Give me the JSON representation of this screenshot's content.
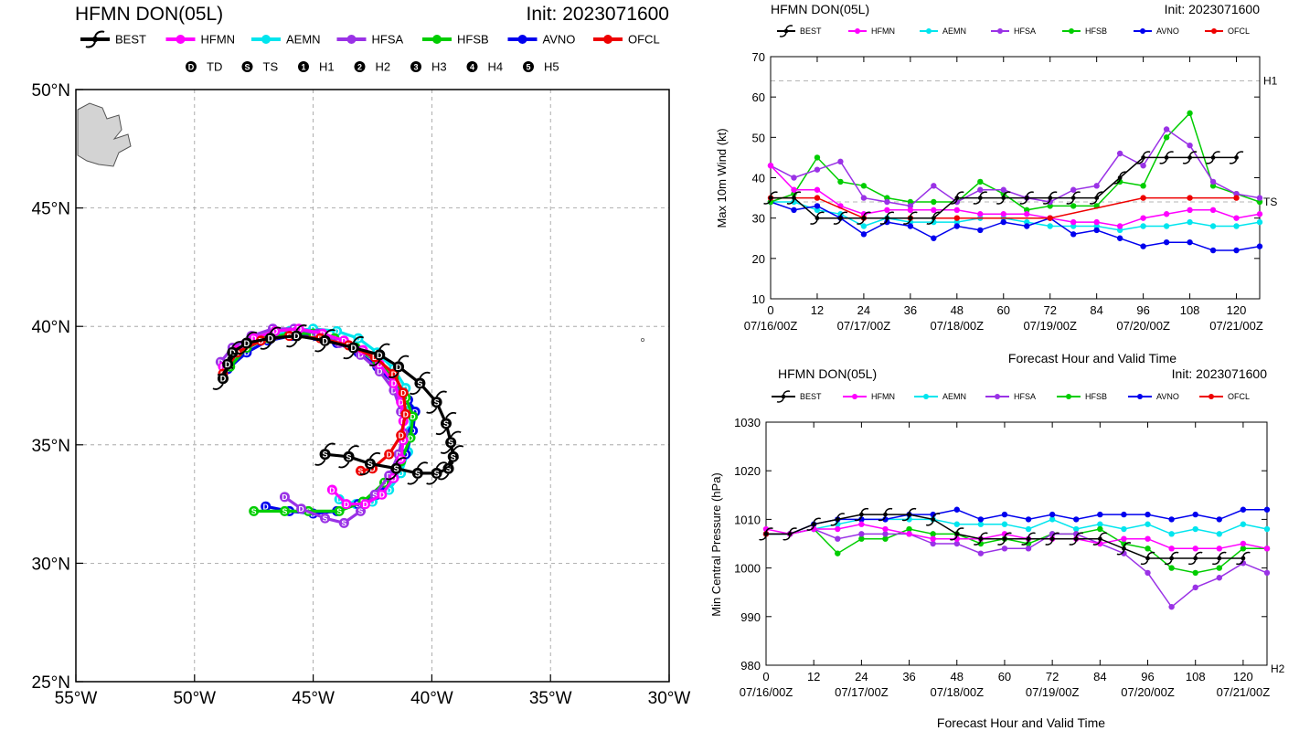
{
  "legend_models": [
    {
      "name": "BEST",
      "color": "#000000"
    },
    {
      "name": "HFMN",
      "color": "#ff00ff"
    },
    {
      "name": "AEMN",
      "color": "#00e5ee"
    },
    {
      "name": "HFSA",
      "color": "#9a32e6"
    },
    {
      "name": "HFSB",
      "color": "#00cd00"
    },
    {
      "name": "AVNO",
      "color": "#0000ee"
    },
    {
      "name": "OFCL",
      "color": "#ee0000"
    }
  ],
  "intensity_symbols": [
    {
      "glyph": "D",
      "label": "TD"
    },
    {
      "glyph": "S",
      "label": "TS"
    },
    {
      "glyph": "1",
      "label": "H1"
    },
    {
      "glyph": "2",
      "label": "H2"
    },
    {
      "glyph": "3",
      "label": "H3"
    },
    {
      "glyph": "4",
      "label": "H4"
    },
    {
      "glyph": "5",
      "label": "H5"
    }
  ],
  "chart_data": [
    {
      "type": "scatter",
      "title": "HFMN DON(05L)",
      "subtitle": "Init: 2023071600",
      "xlim": [
        -55,
        -30
      ],
      "ylim": [
        25,
        50
      ],
      "x_ticks": [
        -55,
        -50,
        -45,
        -40,
        -35,
        -30
      ],
      "x_tick_labels": [
        "55°W",
        "50°W",
        "45°W",
        "40°W",
        "35°W",
        "30°W"
      ],
      "y_ticks": [
        25,
        30,
        35,
        40,
        45,
        50
      ],
      "y_tick_labels": [
        "25°N",
        "30°N",
        "35°N",
        "40°N",
        "45°N",
        "50°N"
      ],
      "grid": true,
      "series": [
        {
          "name": "BEST",
          "color": "#000000",
          "lon": [
            -44.5,
            -43.5,
            -42.6,
            -41.5,
            -40.6,
            -39.8,
            -39.3,
            -39.1,
            -39.2,
            -39.4,
            -39.8,
            -40.5,
            -41.4,
            -42.2,
            -43.3,
            -44.5,
            -45.7,
            -46.8,
            -47.8,
            -48.4,
            -48.6,
            -48.8
          ],
          "lat": [
            34.6,
            34.5,
            34.2,
            34.0,
            33.8,
            33.8,
            34.0,
            34.5,
            35.1,
            35.9,
            36.8,
            37.6,
            38.3,
            38.8,
            39.1,
            39.4,
            39.6,
            39.5,
            39.3,
            38.9,
            38.4,
            37.8
          ],
          "cat": [
            "S",
            "S",
            "S",
            "S",
            "S",
            "S",
            "S",
            "S",
            "S",
            "S",
            "S",
            "S",
            "D",
            "D",
            "D",
            "D",
            "D",
            "D",
            "D",
            "D",
            "D",
            "D"
          ]
        },
        {
          "name": "HFMN",
          "color": "#ff00ff",
          "lon": [
            -48.8,
            -48.2,
            -47.5,
            -46.6,
            -45.6,
            -44.6,
            -43.7,
            -42.9,
            -42.2,
            -41.6,
            -41.3,
            -41.2,
            -41.2,
            -41.3,
            -41.6,
            -42.1,
            -42.8,
            -43.6,
            -44.2
          ],
          "lat": [
            38.3,
            39.0,
            39.5,
            39.8,
            39.9,
            39.7,
            39.4,
            39.0,
            38.4,
            37.6,
            36.8,
            36.0,
            35.2,
            34.4,
            33.6,
            32.9,
            32.5,
            32.5,
            33.1
          ],
          "cat": [
            "D",
            "D",
            "D",
            "D",
            "D",
            "D",
            "D",
            "D",
            "D",
            "D",
            "D",
            "D",
            "D",
            "D",
            "D",
            "D",
            "D",
            "D",
            "D"
          ]
        },
        {
          "name": "AEMN",
          "color": "#00e5ee",
          "lon": [
            -48.6,
            -47.9,
            -47.0,
            -46.0,
            -45.0,
            -44.0,
            -43.1,
            -42.3,
            -41.6,
            -41.1,
            -40.9,
            -40.9,
            -41.0,
            -41.3,
            -41.8,
            -42.5,
            -43.2,
            -43.9
          ],
          "lat": [
            38.2,
            39.0,
            39.5,
            39.8,
            39.9,
            39.8,
            39.5,
            38.9,
            38.2,
            37.4,
            36.5,
            35.6,
            34.7,
            33.8,
            33.1,
            32.6,
            32.5,
            32.7
          ],
          "cat": [
            "D",
            "D",
            "D",
            "D",
            "D",
            "D",
            "D",
            "D",
            "D",
            "D",
            "D",
            "D",
            "D",
            "D",
            "D",
            "D",
            "D",
            "D"
          ]
        },
        {
          "name": "HFSA",
          "color": "#9a32e6",
          "lon": [
            -48.9,
            -48.4,
            -47.6,
            -46.7,
            -45.8,
            -44.8,
            -43.9,
            -43.0,
            -42.2,
            -41.6,
            -41.3,
            -41.2,
            -41.4,
            -41.8,
            -42.4,
            -43.0,
            -43.7,
            -44.5,
            -45.5,
            -46.2
          ],
          "lat": [
            38.5,
            39.1,
            39.6,
            39.9,
            39.9,
            39.7,
            39.3,
            38.8,
            38.1,
            37.3,
            36.4,
            35.5,
            34.6,
            33.7,
            32.9,
            32.2,
            31.7,
            31.9,
            32.3,
            32.8
          ],
          "cat": [
            "D",
            "D",
            "D",
            "D",
            "D",
            "D",
            "D",
            "D",
            "D",
            "D",
            "D",
            "D",
            "D",
            "D",
            "S",
            "S",
            "S",
            "S",
            "D",
            "D"
          ]
        },
        {
          "name": "HFSB",
          "color": "#00cd00",
          "lon": [
            -48.5,
            -47.8,
            -46.9,
            -46.0,
            -45.0,
            -44.1,
            -43.2,
            -42.3,
            -41.6,
            -41.1,
            -40.8,
            -40.9,
            -41.3,
            -42.0,
            -42.9,
            -43.9,
            -45.2,
            -46.2,
            -47.5
          ],
          "lat": [
            38.3,
            39.1,
            39.5,
            39.7,
            39.7,
            39.5,
            39.1,
            38.5,
            37.8,
            37.0,
            36.2,
            35.3,
            34.3,
            33.4,
            32.6,
            32.2,
            32.2,
            32.2,
            32.2
          ],
          "cat": [
            "D",
            "D",
            "D",
            "D",
            "D",
            "D",
            "D",
            "D",
            "D",
            "D",
            "D",
            "D",
            "D",
            "D",
            "D",
            "S",
            "S",
            "S",
            "S"
          ]
        },
        {
          "name": "AVNO",
          "color": "#0000ee",
          "lon": [
            -48.6,
            -47.8,
            -46.9,
            -45.9,
            -44.9,
            -44.0,
            -43.1,
            -42.3,
            -41.6,
            -41.0,
            -40.7,
            -40.8,
            -41.1,
            -41.6,
            -42.3,
            -43.1,
            -44.0,
            -45.0,
            -46.0,
            -47.0
          ],
          "lat": [
            38.2,
            38.9,
            39.4,
            39.6,
            39.6,
            39.3,
            38.9,
            38.3,
            37.6,
            36.9,
            36.4,
            35.6,
            34.6,
            33.6,
            32.9,
            32.5,
            32.2,
            32.1,
            32.2,
            32.4
          ],
          "cat": [
            "D",
            "D",
            "D",
            "D",
            "D",
            "D",
            "D",
            "D",
            "D",
            "D",
            "D",
            "D",
            "D",
            "D",
            "D",
            "D",
            "D",
            "D",
            "D",
            "D"
          ]
        },
        {
          "name": "OFCL",
          "color": "#ee0000",
          "lon": [
            -48.8,
            -48.2,
            -47.2,
            -46.0,
            -44.7,
            -43.5,
            -42.4,
            -41.6,
            -41.2,
            -41.1,
            -41.3,
            -41.8,
            -42.5,
            -43.0
          ],
          "lat": [
            38.0,
            38.9,
            39.4,
            39.6,
            39.5,
            39.2,
            38.7,
            38.0,
            37.2,
            36.3,
            35.4,
            34.6,
            34.0,
            33.9
          ],
          "cat": [
            "D",
            "D",
            "D",
            "D",
            "D",
            "D",
            "D",
            "D",
            "D",
            "D",
            "D",
            "D",
            "D",
            "S"
          ]
        }
      ]
    },
    {
      "type": "line",
      "title": "HFMN DON(05L)",
      "subtitle": "Init: 2023071600",
      "xlabel": "Forecast Hour and Valid Time",
      "ylabel": "Max 10m Wind (kt)",
      "xlim": [
        0,
        126
      ],
      "ylim": [
        10,
        70
      ],
      "x_ticks": [
        0,
        12,
        24,
        36,
        48,
        60,
        72,
        84,
        96,
        108,
        120
      ],
      "x_date_labels": [
        {
          "x": 0,
          "label": "07/16/00Z"
        },
        {
          "x": 24,
          "label": "07/17/00Z"
        },
        {
          "x": 48,
          "label": "07/18/00Z"
        },
        {
          "x": 72,
          "label": "07/19/00Z"
        },
        {
          "x": 96,
          "label": "07/20/00Z"
        },
        {
          "x": 120,
          "label": "07/21/00Z"
        }
      ],
      "y_ticks": [
        10,
        20,
        30,
        40,
        50,
        60,
        70
      ],
      "ref_lines": [
        {
          "y": 64,
          "label": "H1"
        },
        {
          "y": 34,
          "label": "TS"
        }
      ],
      "x": [
        0,
        6,
        12,
        18,
        24,
        30,
        36,
        42,
        48,
        54,
        60,
        66,
        72,
        78,
        84,
        90,
        96,
        102,
        108,
        114,
        120,
        126
      ],
      "series": [
        {
          "name": "BEST",
          "color": "#000000",
          "values": [
            35,
            35,
            30,
            30,
            30,
            30,
            30,
            30,
            35,
            35,
            35,
            35,
            35,
            35,
            35,
            40,
            45,
            45,
            45,
            45,
            45,
            null
          ]
        },
        {
          "name": "HFMN",
          "color": "#ff00ff",
          "values": [
            43,
            37,
            37,
            33,
            31,
            32,
            32,
            32,
            32,
            31,
            31,
            31,
            30,
            29,
            29,
            28,
            30,
            31,
            32,
            32,
            30,
            31
          ]
        },
        {
          "name": "AEMN",
          "color": "#00e5ee",
          "values": [
            34,
            34,
            32,
            31,
            28,
            30,
            29,
            29,
            29,
            30,
            30,
            29,
            28,
            28,
            28,
            27,
            28,
            28,
            29,
            28,
            28,
            29
          ]
        },
        {
          "name": "HFSA",
          "color": "#9a32e6",
          "values": [
            43,
            40,
            42,
            44,
            35,
            34,
            33,
            38,
            34,
            37,
            37,
            35,
            34,
            37,
            38,
            46,
            43,
            52,
            48,
            39,
            36,
            35
          ]
        },
        {
          "name": "HFSB",
          "color": "#00cd00",
          "values": [
            34,
            36,
            45,
            39,
            38,
            35,
            34,
            34,
            34,
            39,
            36,
            32,
            33,
            33,
            33,
            39,
            38,
            50,
            56,
            38,
            36,
            34
          ]
        },
        {
          "name": "AVNO",
          "color": "#0000ee",
          "values": [
            34,
            32,
            33,
            30,
            26,
            29,
            28,
            25,
            28,
            27,
            29,
            28,
            30,
            26,
            27,
            25,
            23,
            24,
            24,
            22,
            22,
            23
          ]
        },
        {
          "name": "OFCL",
          "color": "#ee0000",
          "values": [
            35,
            null,
            35,
            null,
            30,
            null,
            30,
            null,
            30,
            null,
            null,
            null,
            30,
            null,
            null,
            null,
            35,
            null,
            35,
            null,
            35,
            null
          ]
        }
      ]
    },
    {
      "type": "line",
      "title": "HFMN DON(05L)",
      "subtitle": "Init: 2023071600",
      "xlabel": "Forecast Hour and Valid Time",
      "ylabel": "Min Central Pressure (hPa)",
      "xlim": [
        0,
        126
      ],
      "ylim": [
        980,
        1030
      ],
      "x_ticks": [
        0,
        12,
        24,
        36,
        48,
        60,
        72,
        84,
        96,
        108,
        120
      ],
      "x_date_labels": [
        {
          "x": 0,
          "label": "07/16/00Z"
        },
        {
          "x": 24,
          "label": "07/17/00Z"
        },
        {
          "x": 48,
          "label": "07/18/00Z"
        },
        {
          "x": 72,
          "label": "07/19/00Z"
        },
        {
          "x": 96,
          "label": "07/20/00Z"
        },
        {
          "x": 120,
          "label": "07/21/00Z"
        }
      ],
      "y_ticks": [
        980,
        990,
        1000,
        1010,
        1020,
        1030
      ],
      "ref_lines": [
        {
          "y": 979,
          "label": "H2"
        }
      ],
      "x": [
        0,
        6,
        12,
        18,
        24,
        30,
        36,
        42,
        48,
        54,
        60,
        66,
        72,
        78,
        84,
        90,
        96,
        102,
        108,
        114,
        120,
        126
      ],
      "series": [
        {
          "name": "BEST",
          "color": "#000000",
          "values": [
            1007,
            1007,
            1009,
            1010,
            1011,
            1011,
            1011,
            1010,
            1007,
            1006,
            1006,
            1006,
            1006,
            1006,
            1006,
            1004,
            1002,
            1002,
            1002,
            1002,
            1002,
            null
          ]
        },
        {
          "name": "HFMN",
          "color": "#ff00ff",
          "values": [
            1008,
            1007,
            1008,
            1008,
            1009,
            1008,
            1007,
            1006,
            1006,
            1006,
            1007,
            1006,
            1006,
            1006,
            1005,
            1006,
            1006,
            1004,
            1004,
            1004,
            1005,
            1004
          ]
        },
        {
          "name": "AEMN",
          "color": "#00e5ee",
          "values": [
            1007,
            1007,
            1008,
            1009,
            1010,
            1010,
            1010,
            1010,
            1009,
            1009,
            1009,
            1008,
            1010,
            1008,
            1009,
            1008,
            1009,
            1007,
            1008,
            1007,
            1009,
            1008
          ]
        },
        {
          "name": "HFSA",
          "color": "#9a32e6",
          "values": [
            1007,
            1007,
            1008,
            1006,
            1007,
            1007,
            1007,
            1005,
            1005,
            1003,
            1004,
            1004,
            1007,
            1007,
            1005,
            1003,
            999,
            992,
            996,
            998,
            1001,
            999
          ]
        },
        {
          "name": "HFSB",
          "color": "#00cd00",
          "values": [
            1007,
            1007,
            1008,
            1003,
            1006,
            1006,
            1008,
            1007,
            1007,
            1005,
            1006,
            1005,
            1007,
            1007,
            1008,
            1005,
            1004,
            1000,
            999,
            1000,
            1004,
            1004
          ]
        },
        {
          "name": "AVNO",
          "color": "#0000ee",
          "values": [
            1007,
            1007,
            1009,
            1010,
            1010,
            1010,
            1011,
            1011,
            1012,
            1010,
            1011,
            1010,
            1011,
            1010,
            1011,
            1011,
            1011,
            1010,
            1011,
            1010,
            1012,
            1012
          ]
        },
        {
          "name": "OFCL",
          "color": "#ee0000",
          "values": [
            1007,
            null,
            null,
            null,
            null,
            null,
            null,
            null,
            null,
            null,
            null,
            null,
            null,
            null,
            null,
            null,
            null,
            null,
            null,
            null,
            null,
            null
          ]
        }
      ]
    }
  ]
}
